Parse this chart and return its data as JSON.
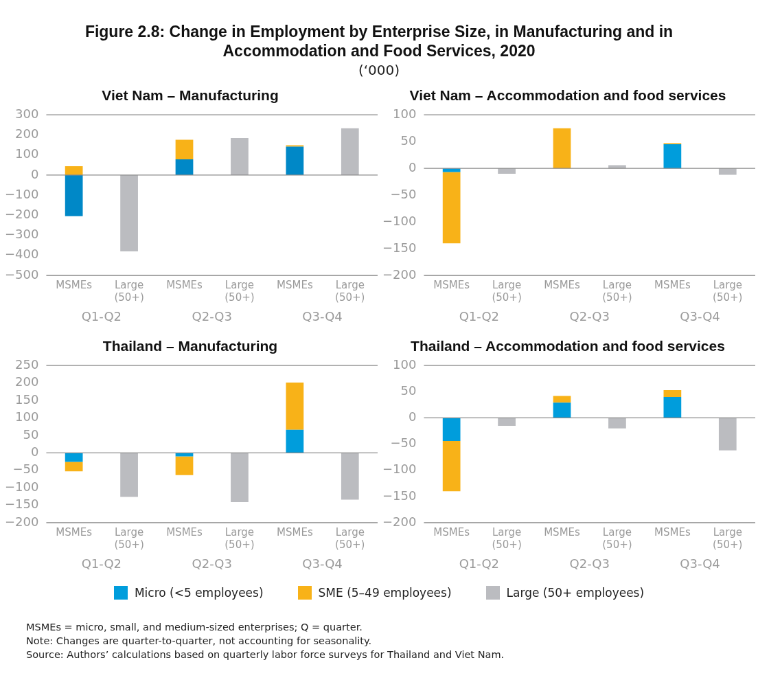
{
  "chart_data": [
    {
      "type": "bar",
      "title": "Viet Nam – Manufacturing",
      "stacked": true,
      "categories": [
        "MSMEs",
        "Large (50+)",
        "MSMEs",
        "Large (50+)",
        "MSMEs",
        "Large (50+)"
      ],
      "series": [
        {
          "color": "#0088c7",
          "values": [
            -205,
            null,
            78,
            null,
            142,
            null
          ]
        },
        {
          "color": "#f8b218",
          "values": [
            44,
            null,
            98,
            null,
            6,
            null
          ]
        },
        {
          "color": "#bbbcc0",
          "values": [
            null,
            -380,
            null,
            184,
            null,
            233
          ]
        }
      ],
      "ylim": [
        -500,
        300
      ],
      "yticks": [
        -500,
        -400,
        -300,
        -200,
        -100,
        0,
        100,
        200,
        300
      ],
      "annotations": [
        "Q1-Q2",
        "Q2-Q3",
        "Q3-Q4",
        "Figure 2.8: Change in Employment by Enterprise Size, in Manufacturing and in Accommodation and Food Services, 2020",
        "(‘000)"
      ]
    },
    {
      "type": "bar",
      "title": "Viet Nam – Accommodation and food services",
      "stacked": true,
      "categories": [
        "MSMEs",
        "Large (50+)",
        "MSMEs",
        "Large (50+)",
        "MSMEs",
        "Large (50+)"
      ],
      "series": [
        {
          "color": "#009ddc",
          "values": [
            -7,
            null,
            null,
            null,
            45,
            null
          ]
        },
        {
          "color": "#f8b218",
          "values": [
            -133,
            null,
            75,
            null,
            2,
            null
          ]
        },
        {
          "color": "#bbbcc0",
          "values": [
            null,
            -10,
            null,
            6,
            null,
            -12
          ]
        }
      ],
      "ylim": [
        -200,
        100
      ],
      "yticks": [
        -200,
        -150,
        -100,
        -50,
        0,
        50,
        100
      ],
      "annotations": [
        "Q1-Q2",
        "Q2-Q3",
        "Q3-Q4"
      ]
    },
    {
      "type": "bar",
      "title": "Thailand – Manufacturing",
      "stacked": true,
      "categories": [
        "MSMEs",
        "Large (50+)",
        "MSMEs",
        "Large (50+)",
        "MSMEs",
        "Large (50+)"
      ],
      "series": [
        {
          "color": "#009ddc",
          "values": [
            -26,
            null,
            -10,
            null,
            66,
            null
          ]
        },
        {
          "color": "#f8b218",
          "values": [
            -27,
            null,
            -54,
            null,
            135,
            null
          ]
        },
        {
          "color": "#bbbcc0",
          "values": [
            null,
            -126,
            null,
            -141,
            null,
            -134
          ]
        }
      ],
      "ylim": [
        -200,
        250
      ],
      "yticks": [
        -200,
        -150,
        -100,
        -50,
        0,
        50,
        100,
        150,
        200,
        250
      ],
      "annotations": [
        "Q1-Q2",
        "Q2-Q3",
        "Q3-Q4"
      ]
    },
    {
      "type": "bar",
      "title": "Thailand – Accommodation and food services",
      "stacked": true,
      "legend": "bottom",
      "categories": [
        "MSMEs",
        "Large (50+)",
        "MSMEs",
        "Large (50+)",
        "MSMEs",
        "Large (50+)"
      ],
      "series": [
        {
          "name": "Micro (<5 employees)",
          "color": "#009ddc",
          "values": [
            -44,
            null,
            29,
            null,
            40,
            null
          ]
        },
        {
          "name": "SME (5–49 employees)",
          "color": "#f8b218",
          "values": [
            -96,
            null,
            13,
            null,
            13,
            null
          ]
        },
        {
          "name": "Large (50+ employees)",
          "color": "#bbbcc0",
          "values": [
            null,
            -15,
            null,
            -20,
            null,
            -62
          ]
        }
      ],
      "ylim": [
        -200,
        100
      ],
      "yticks": [
        -200,
        -150,
        -100,
        -50,
        0,
        50,
        100
      ],
      "annotations": [
        "Q1-Q2",
        "Q2-Q3",
        "Q3-Q4",
        "MSMEs = micro, small, and medium-sized enterprises; Q = quarter.",
        "Note: Changes are quarter-to-quarter, not accounting for seasonality.",
        "Source: Authors’ calculations based on quarterly labor force surveys for Thailand and Viet Nam."
      ]
    }
  ]
}
